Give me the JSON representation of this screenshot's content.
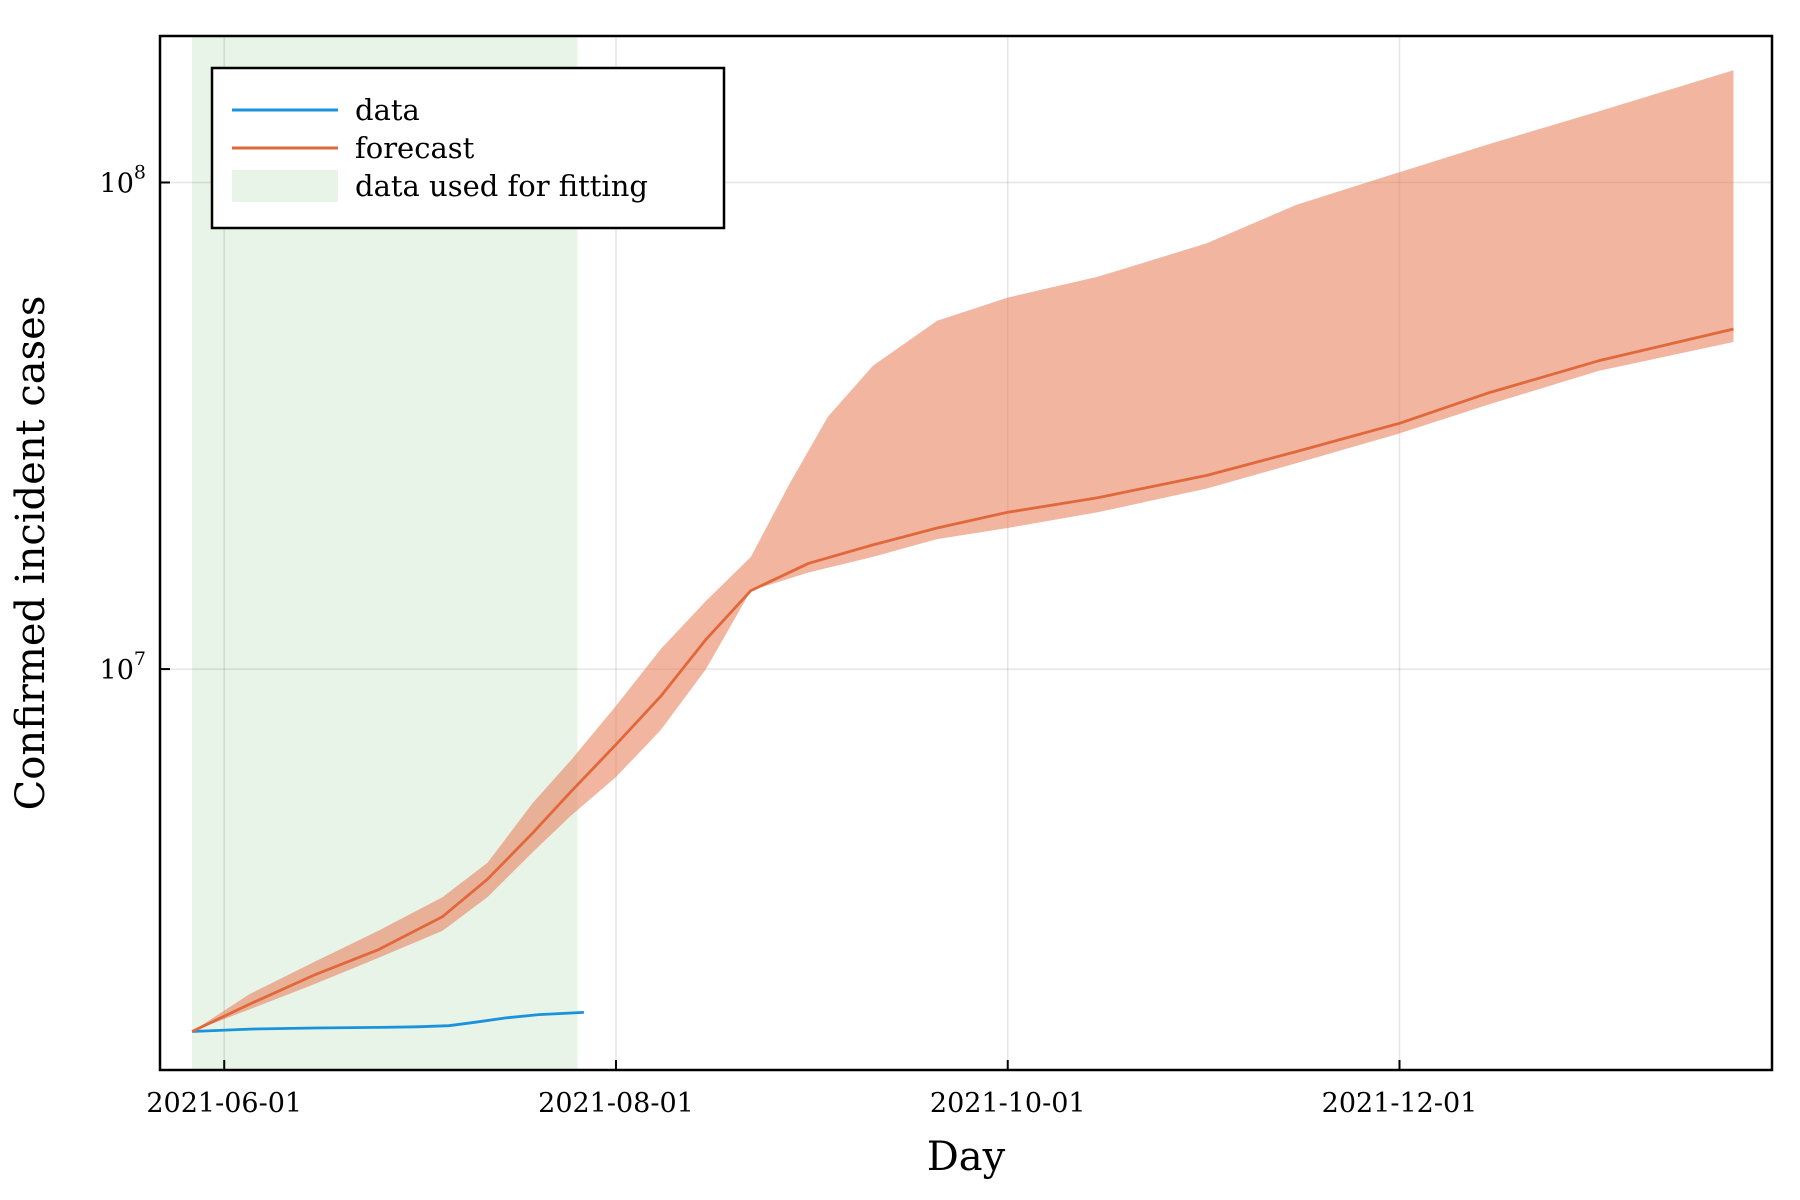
{
  "chart_data": {
    "type": "line",
    "title": "",
    "xlabel": "Day",
    "ylabel": "Confirmed incident cases",
    "y_scale": "log",
    "ylim": [
      1500000,
      200000000
    ],
    "xlim": [
      "2021-05-22",
      "2022-01-28"
    ],
    "grid": true,
    "legend_position": "top-left",
    "x_ticks": [
      "2021-06-01",
      "2021-08-01",
      "2021-10-01",
      "2021-12-01"
    ],
    "y_ticks": [
      {
        "value": 10000000,
        "base": "10",
        "exp": "7"
      },
      {
        "value": 100000000,
        "base": "10",
        "exp": "8"
      }
    ],
    "fitting_window": {
      "name": "data used for fitting",
      "start": "2021-05-27",
      "end": "2021-07-26",
      "color": "#e8f4e8"
    },
    "series": [
      {
        "name": "data",
        "color": "#1a93dc",
        "points": [
          [
            "2021-05-27",
            1800000
          ],
          [
            "2021-06-05",
            1820000
          ],
          [
            "2021-06-15",
            1830000
          ],
          [
            "2021-06-25",
            1835000
          ],
          [
            "2021-07-01",
            1840000
          ],
          [
            "2021-07-06",
            1850000
          ],
          [
            "2021-07-10",
            1880000
          ],
          [
            "2021-07-15",
            1920000
          ],
          [
            "2021-07-20",
            1950000
          ],
          [
            "2021-07-27",
            1970000
          ]
        ]
      },
      {
        "name": "forecast",
        "color": "#e0683a",
        "points": [
          [
            "2021-05-27",
            1800000
          ],
          [
            "2021-06-05",
            2050000
          ],
          [
            "2021-06-15",
            2350000
          ],
          [
            "2021-06-25",
            2650000
          ],
          [
            "2021-07-05",
            3100000
          ],
          [
            "2021-07-12",
            3700000
          ],
          [
            "2021-07-19",
            4600000
          ],
          [
            "2021-07-25",
            5600000
          ],
          [
            "2021-08-01",
            7000000
          ],
          [
            "2021-08-08",
            8800000
          ],
          [
            "2021-08-15",
            11500000
          ],
          [
            "2021-08-22",
            14500000
          ],
          [
            "2021-08-31",
            16500000
          ],
          [
            "2021-09-10",
            18000000
          ],
          [
            "2021-09-20",
            19500000
          ],
          [
            "2021-10-01",
            21000000
          ],
          [
            "2021-10-15",
            22500000
          ],
          [
            "2021-11-01",
            25000000
          ],
          [
            "2021-11-15",
            28000000
          ],
          [
            "2021-12-01",
            32000000
          ],
          [
            "2021-12-15",
            37000000
          ],
          [
            "2022-01-01",
            43000000
          ],
          [
            "2022-01-22",
            50000000
          ]
        ]
      }
    ],
    "forecast_band": {
      "color": "#e8805c",
      "opacity": 0.58,
      "upper": [
        [
          "2021-05-27",
          1800000
        ],
        [
          "2021-06-05",
          2150000
        ],
        [
          "2021-06-15",
          2500000
        ],
        [
          "2021-06-25",
          2900000
        ],
        [
          "2021-07-05",
          3400000
        ],
        [
          "2021-07-12",
          4000000
        ],
        [
          "2021-07-19",
          5300000
        ],
        [
          "2021-07-25",
          6500000
        ],
        [
          "2021-08-01",
          8400000
        ],
        [
          "2021-08-08",
          11000000
        ],
        [
          "2021-08-15",
          13800000
        ],
        [
          "2021-08-22",
          17000000
        ],
        [
          "2021-08-28",
          24000000
        ],
        [
          "2021-09-03",
          33000000
        ],
        [
          "2021-09-10",
          42000000
        ],
        [
          "2021-09-20",
          52000000
        ],
        [
          "2021-10-01",
          58000000
        ],
        [
          "2021-10-15",
          64000000
        ],
        [
          "2021-11-01",
          75000000
        ],
        [
          "2021-11-15",
          90000000
        ],
        [
          "2021-12-01",
          105000000
        ],
        [
          "2021-12-15",
          120000000
        ],
        [
          "2022-01-01",
          140000000
        ],
        [
          "2022-01-22",
          170000000
        ]
      ],
      "lower": [
        [
          "2021-05-27",
          1800000
        ],
        [
          "2021-06-05",
          2000000
        ],
        [
          "2021-06-15",
          2250000
        ],
        [
          "2021-06-25",
          2550000
        ],
        [
          "2021-07-05",
          2900000
        ],
        [
          "2021-07-12",
          3400000
        ],
        [
          "2021-07-19",
          4200000
        ],
        [
          "2021-07-25",
          5000000
        ],
        [
          "2021-08-01",
          6000000
        ],
        [
          "2021-08-08",
          7500000
        ],
        [
          "2021-08-15",
          10000000
        ],
        [
          "2021-08-22",
          14500000
        ],
        [
          "2021-08-31",
          15800000
        ],
        [
          "2021-09-10",
          17000000
        ],
        [
          "2021-09-20",
          18500000
        ],
        [
          "2021-10-01",
          19500000
        ],
        [
          "2021-10-15",
          21000000
        ],
        [
          "2021-11-01",
          23500000
        ],
        [
          "2021-11-15",
          26500000
        ],
        [
          "2021-12-01",
          30500000
        ],
        [
          "2021-12-15",
          35000000
        ],
        [
          "2022-01-01",
          41000000
        ],
        [
          "2022-01-22",
          47000000
        ]
      ]
    }
  }
}
